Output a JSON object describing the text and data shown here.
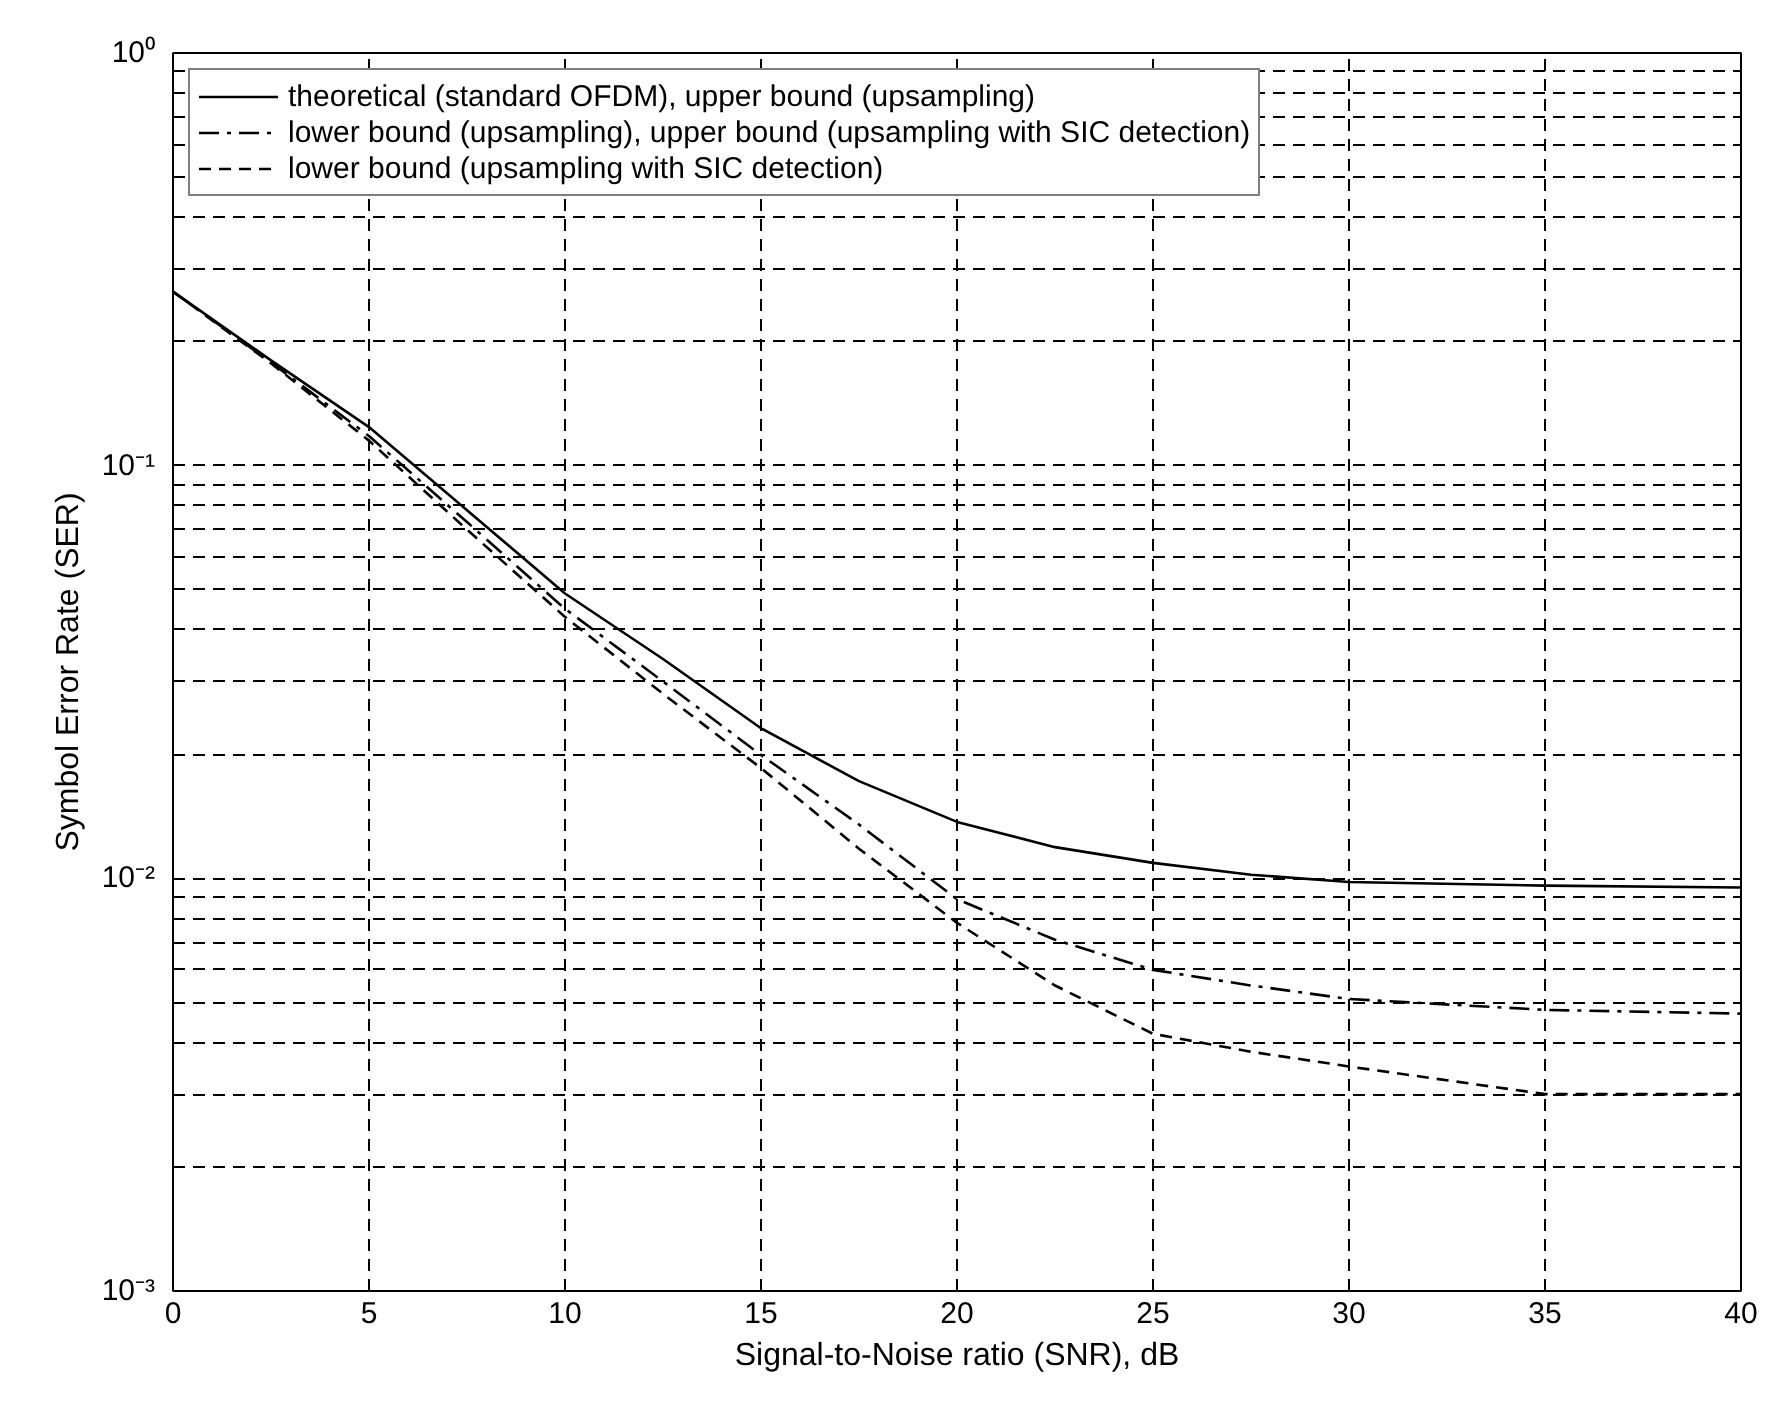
{
  "chart_data": {
    "type": "line",
    "xlabel": "Signal-to-Noise ratio (SNR), dB",
    "ylabel": "Symbol Error Rate (SER)",
    "log": "y",
    "grid": true,
    "legend": "top left",
    "xlim": [
      0,
      40
    ],
    "xticks": [
      0,
      5,
      10,
      15,
      20,
      25,
      30,
      35,
      40
    ],
    "ylim": [
      0.001,
      1
    ],
    "yticks": [
      {
        "value": 0.001,
        "label": "10⁻³"
      },
      {
        "value": 0.01,
        "label": "10⁻²"
      },
      {
        "value": 0.1,
        "label": "10⁻¹"
      },
      {
        "value": 1,
        "label": "10⁰"
      }
    ],
    "x": [
      0,
      2.5,
      5,
      7.5,
      10,
      12.5,
      15,
      17.5,
      20,
      22.5,
      25,
      27.5,
      30,
      35,
      40
    ],
    "series": [
      {
        "name": "theoretical (standard OFDM), upper bound (upsampling)",
        "color": "#000000",
        "line_style": "solid",
        "values": [
          0.264,
          0.18,
          0.124,
          0.078,
          0.049,
          0.034,
          0.0231,
          0.0172,
          0.0137,
          0.0119,
          0.0109,
          0.0102,
          0.0098,
          0.0096,
          0.0095
        ]
      },
      {
        "name": "lower bound (upsampling), upper bound (upsampling with SIC detection)",
        "color": "#000000",
        "line_style": "dashdot",
        "values": [
          0.264,
          0.178,
          0.118,
          0.073,
          0.045,
          0.03,
          0.0199,
          0.0135,
          0.0089,
          0.0071,
          0.006,
          0.0055,
          0.0051,
          0.0048,
          0.0047
        ]
      },
      {
        "name": "lower bound (upsampling with SIC detection)",
        "color": "#000000",
        "line_style": "dashed",
        "values": [
          0.264,
          0.177,
          0.115,
          0.07,
          0.043,
          0.028,
          0.0185,
          0.0118,
          0.0078,
          0.0055,
          0.0042,
          0.0038,
          0.0035,
          0.003,
          0.003
        ]
      }
    ]
  }
}
